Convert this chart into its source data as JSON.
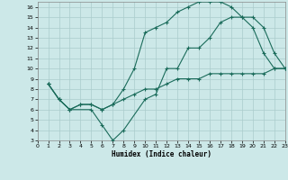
{
  "xlabel": "Humidex (Indice chaleur)",
  "bg_color": "#cce8e8",
  "grid_color": "#aacccc",
  "line_color": "#1a6b5a",
  "xlim": [
    0,
    23
  ],
  "ylim": [
    3,
    16.5
  ],
  "xticks": [
    0,
    1,
    2,
    3,
    4,
    5,
    6,
    7,
    8,
    9,
    10,
    11,
    12,
    13,
    14,
    15,
    16,
    17,
    18,
    19,
    20,
    21,
    22,
    23
  ],
  "yticks": [
    3,
    4,
    5,
    6,
    7,
    8,
    9,
    10,
    11,
    12,
    13,
    14,
    15,
    16
  ],
  "line1_x": [
    1,
    2,
    3,
    5,
    6,
    7,
    8,
    10,
    11,
    12,
    13,
    14,
    15,
    16,
    17,
    18,
    19,
    20,
    21,
    22,
    23
  ],
  "line1_y": [
    8.5,
    7.0,
    6.0,
    6.0,
    4.5,
    3.0,
    4.0,
    7.0,
    7.5,
    10.0,
    10.0,
    12.0,
    12.0,
    13.0,
    14.5,
    15.0,
    15.0,
    15.0,
    14.0,
    11.5,
    10.0
  ],
  "line2_x": [
    1,
    2,
    3,
    4,
    5,
    6,
    7,
    8,
    9,
    10,
    11,
    12,
    13,
    14,
    15,
    16,
    17,
    18,
    19,
    20,
    21,
    22,
    23
  ],
  "line2_y": [
    8.5,
    7.0,
    6.0,
    6.5,
    6.5,
    6.0,
    6.5,
    8.0,
    10.0,
    13.5,
    14.0,
    14.5,
    15.5,
    16.0,
    16.5,
    16.5,
    16.5,
    16.0,
    15.0,
    14.0,
    11.5,
    10.0,
    10.0
  ],
  "line3_x": [
    1,
    2,
    3,
    4,
    5,
    6,
    7,
    8,
    9,
    10,
    11,
    12,
    13,
    14,
    15,
    16,
    17,
    18,
    19,
    20,
    21,
    22,
    23
  ],
  "line3_y": [
    8.5,
    7.0,
    6.0,
    6.5,
    6.5,
    6.0,
    6.5,
    7.0,
    7.5,
    8.0,
    8.0,
    8.5,
    9.0,
    9.0,
    9.0,
    9.5,
    9.5,
    9.5,
    9.5,
    9.5,
    9.5,
    10.0,
    10.0
  ]
}
